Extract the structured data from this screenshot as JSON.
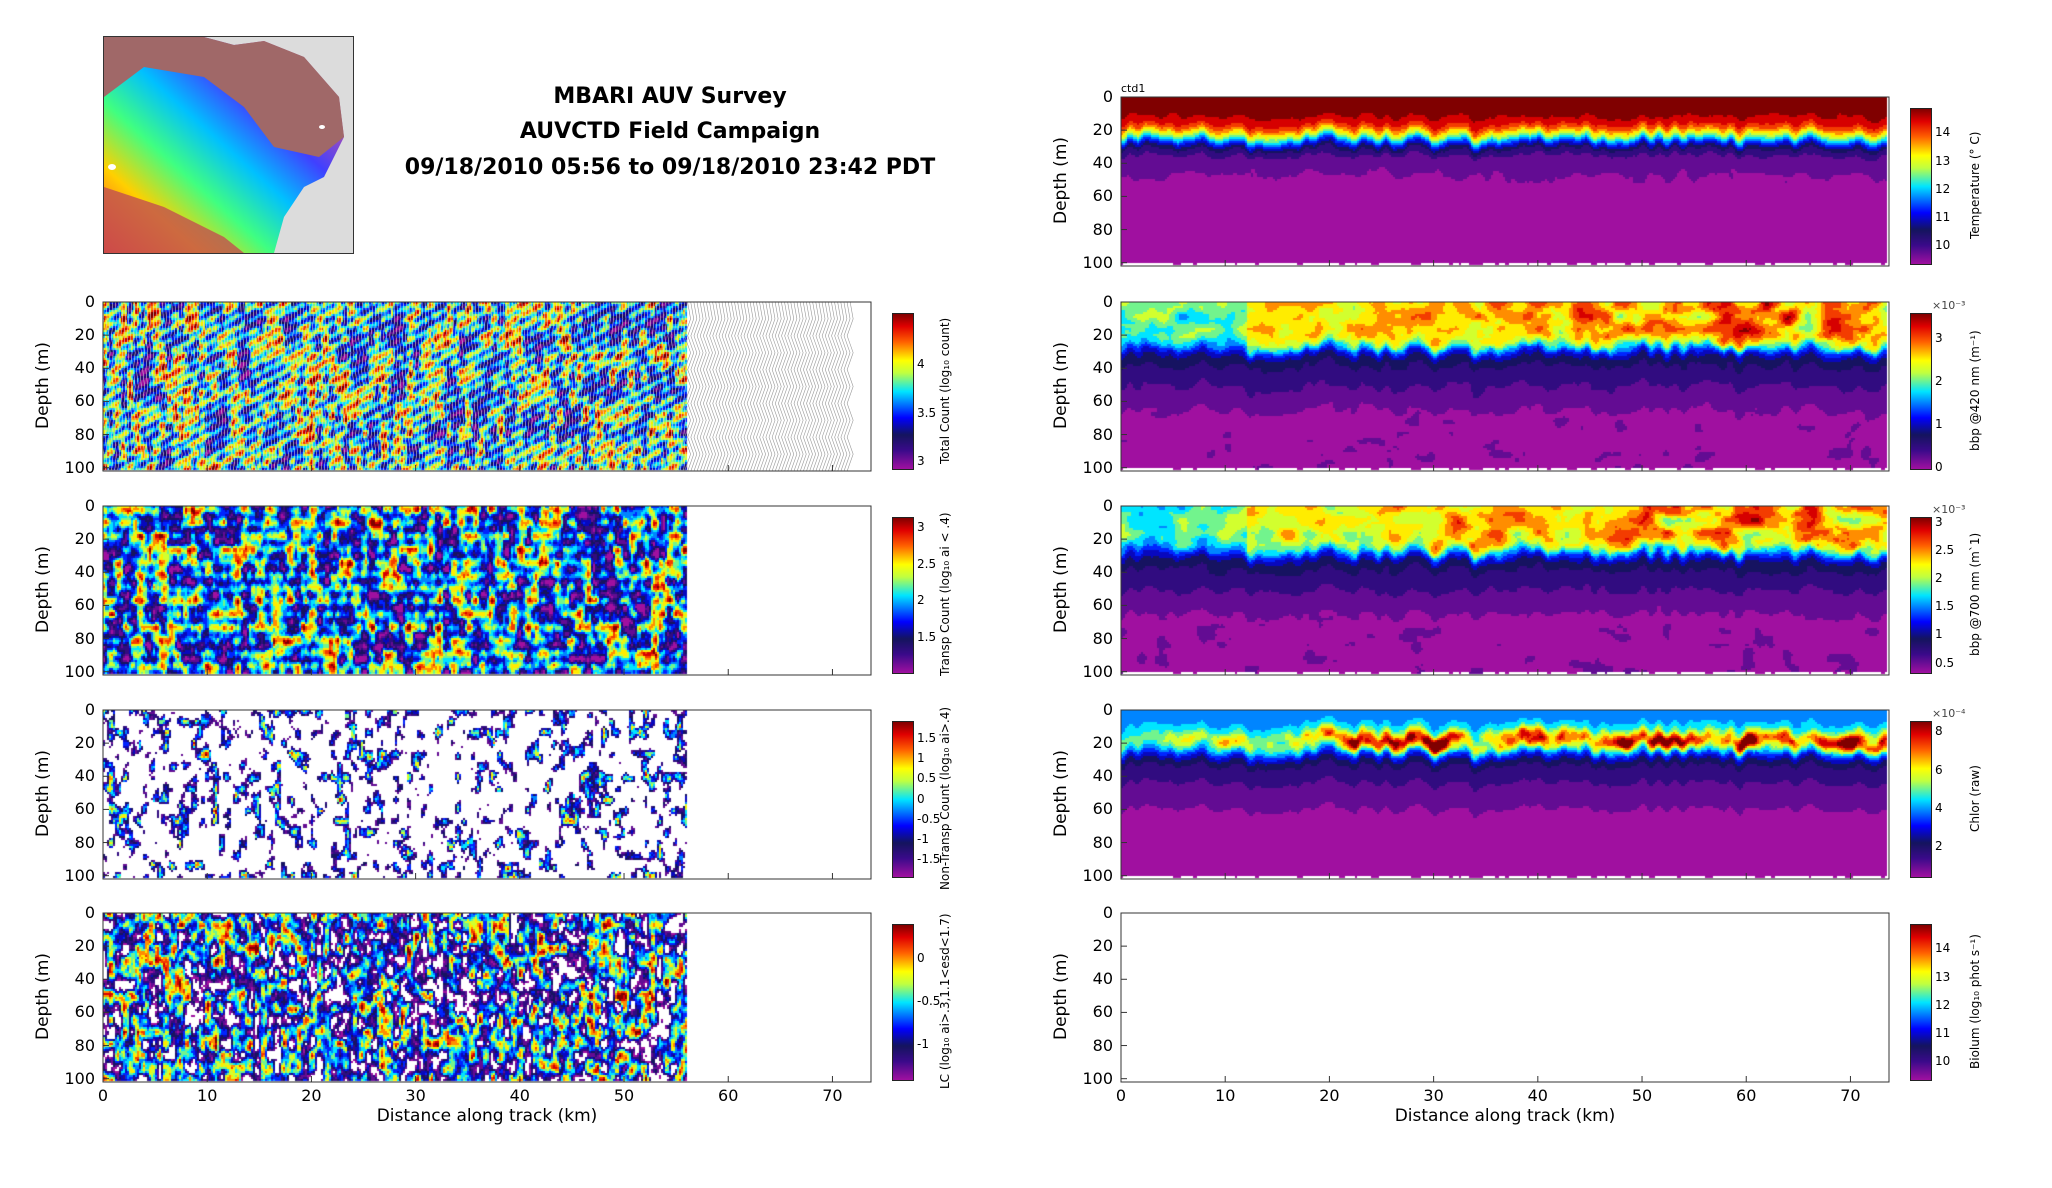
{
  "header": {
    "line1": "MBARI AUV Survey",
    "line2": "AUVCTD Field Campaign",
    "line3": "09/18/2010 05:56 to 09/18/2010 23:42 PDT"
  },
  "colormap": [
    "#a010a0",
    "#3a0a8a",
    "#14145e",
    "#0000ff",
    "#00e5ff",
    "#c0ff40",
    "#ffff00",
    "#ff6000",
    "#e00000",
    "#800000"
  ],
  "chart_data": [
    {
      "id": "temperature",
      "type": "heatmap",
      "tag": "ctd1",
      "ylabel": "Depth (m)",
      "xlabel": "",
      "xlim": [
        0,
        73.7
      ],
      "ylim": [
        0,
        102
      ],
      "yticks": [
        0,
        20,
        40,
        60,
        80,
        100
      ],
      "xticks": [],
      "data_xmax": 73.5,
      "colorbar": {
        "label": "Temperature (° C)",
        "range": [
          9.4,
          14.9
        ],
        "ticks": [
          "10",
          "11",
          "12",
          "13",
          "14"
        ],
        "tick_values": [
          10,
          11,
          12,
          13,
          14
        ],
        "exponent": ""
      }
    },
    {
      "id": "total-count",
      "type": "heatmap",
      "ylabel": "Depth (m)",
      "xlabel": "",
      "xlim": [
        0,
        73.7
      ],
      "ylim": [
        0,
        102
      ],
      "yticks": [
        0,
        20,
        40,
        60,
        80,
        100
      ],
      "xticks": [],
      "data_xmax": 56,
      "colorbar": {
        "label": "Total Count (log₁₀ count)",
        "range": [
          2.94,
          4.54
        ],
        "ticks": [
          "3",
          "3.5",
          "4"
        ],
        "tick_values": [
          3,
          3.5,
          4
        ],
        "exponent": ""
      }
    },
    {
      "id": "bbp420",
      "type": "heatmap",
      "ylabel": "Depth (m)",
      "xlabel": "",
      "xlim": [
        0,
        73.7
      ],
      "ylim": [
        0,
        102
      ],
      "yticks": [
        0,
        20,
        40,
        60,
        80,
        100
      ],
      "xticks": [],
      "data_xmax": 73.5,
      "colorbar": {
        "label": "bbp @420 nm (m⁻¹)",
        "range": [
          0,
          3.6
        ],
        "ticks": [
          "0",
          "1",
          "2",
          "3"
        ],
        "tick_values": [
          0,
          1,
          2,
          3
        ],
        "exponent": "×10⁻³"
      }
    },
    {
      "id": "transp-count",
      "type": "heatmap",
      "ylabel": "Depth (m)",
      "xlabel": "",
      "xlim": [
        0,
        73.7
      ],
      "ylim": [
        0,
        102
      ],
      "yticks": [
        0,
        20,
        40,
        60,
        80,
        100
      ],
      "xticks": [],
      "data_xmax": 56,
      "colorbar": {
        "label": "Transp Count (log₁₀ ai < .4)",
        "range": [
          1.04,
          3.15
        ],
        "ticks": [
          "1.5",
          "2",
          "2.5",
          "3"
        ],
        "tick_values": [
          1.5,
          2,
          2.5,
          3
        ],
        "exponent": ""
      }
    },
    {
      "id": "bbp700",
      "type": "heatmap",
      "ylabel": "Depth (m)",
      "xlabel": "",
      "xlim": [
        0,
        73.7
      ],
      "ylim": [
        0,
        102
      ],
      "yticks": [
        0,
        20,
        40,
        60,
        80,
        100
      ],
      "xticks": [],
      "data_xmax": 73.5,
      "colorbar": {
        "label": "bbp @700 nm (m`1)",
        "range": [
          0.35,
          3.1
        ],
        "ticks": [
          "0.5",
          "1",
          "1.5",
          "2",
          "2.5",
          "3"
        ],
        "tick_values": [
          0.5,
          1,
          1.5,
          2,
          2.5,
          3
        ],
        "exponent": "×10⁻³"
      }
    },
    {
      "id": "nontransp-count",
      "type": "heatmap",
      "ylabel": "Depth (m)",
      "xlabel": "",
      "xlim": [
        0,
        73.7
      ],
      "ylim": [
        0,
        102
      ],
      "yticks": [
        0,
        20,
        40,
        60,
        80,
        100
      ],
      "xticks": [],
      "data_xmax": 56,
      "colorbar": {
        "label": "Non-Transp Count (log₁₀ ai>.4)",
        "range": [
          -1.9,
          1.95
        ],
        "ticks": [
          "-1.5",
          "-1",
          "-0.5",
          "0",
          "0.5",
          "1",
          "1.5"
        ],
        "tick_values": [
          -1.5,
          -1,
          -0.5,
          0,
          0.5,
          1,
          1.5
        ],
        "exponent": ""
      }
    },
    {
      "id": "chlor",
      "type": "heatmap",
      "ylabel": "Depth (m)",
      "xlabel": "",
      "xlim": [
        0,
        73.7
      ],
      "ylim": [
        0,
        102
      ],
      "yticks": [
        0,
        20,
        40,
        60,
        80,
        100
      ],
      "xticks": [],
      "data_xmax": 73.5,
      "colorbar": {
        "label": "Chlor (raw)",
        "range": [
          0.5,
          8.6
        ],
        "ticks": [
          "2",
          "4",
          "6",
          "8"
        ],
        "tick_values": [
          2,
          4,
          6,
          8
        ],
        "exponent": "×10⁻⁴"
      }
    },
    {
      "id": "lc",
      "type": "heatmap",
      "ylabel": "Depth (m)",
      "xlabel": "Distance along track (km)",
      "xlim": [
        0,
        73.7
      ],
      "ylim": [
        0,
        102
      ],
      "yticks": [
        0,
        20,
        40,
        60,
        80,
        100
      ],
      "xticks": [
        0,
        10,
        20,
        30,
        40,
        50,
        60,
        70
      ],
      "data_xmax": 56,
      "colorbar": {
        "label": "LC (log₁₀ ai>.3,1.1<esd<1.7)",
        "range": [
          -1.39,
          0.4
        ],
        "ticks": [
          "-1",
          "-0.5",
          "0"
        ],
        "tick_values": [
          -1,
          -0.5,
          0
        ],
        "exponent": ""
      }
    },
    {
      "id": "biolum",
      "type": "heatmap",
      "ylabel": "Depth (m)",
      "xlabel": "Distance along track (km)",
      "xlim": [
        0,
        73.7
      ],
      "ylim": [
        0,
        102
      ],
      "yticks": [
        0,
        20,
        40,
        60,
        80,
        100
      ],
      "xticks": [
        0,
        10,
        20,
        30,
        40,
        50,
        60,
        70
      ],
      "data_xmax": 0,
      "colorbar": {
        "label": "Biolum (log₁₀ phot s⁻¹)",
        "range": [
          9.4,
          14.9
        ],
        "ticks": [
          "10",
          "11",
          "12",
          "13",
          "14"
        ],
        "tick_values": [
          10,
          11,
          12,
          13,
          14
        ],
        "exponent": ""
      }
    }
  ]
}
